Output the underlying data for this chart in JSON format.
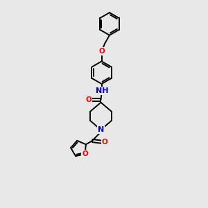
{
  "bg_color": "#e8e8e8",
  "bond_color": "#000000",
  "bond_lw": 1.4,
  "atom_colors": {
    "O": "#ff0000",
    "N": "#0000cd",
    "C": "#000000"
  },
  "font_size": 7.5,
  "xlim": [
    0,
    10
  ],
  "ylim": [
    0,
    13
  ]
}
